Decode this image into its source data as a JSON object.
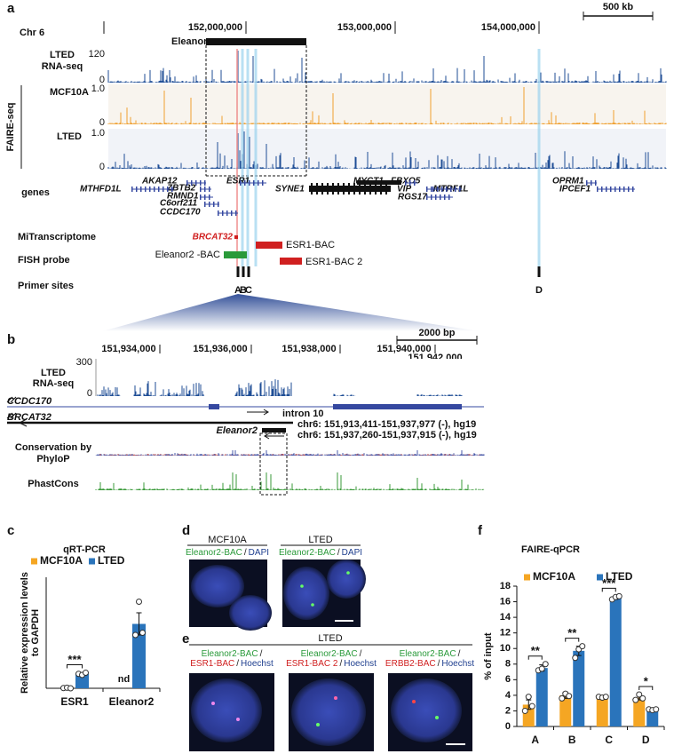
{
  "panel_a": {
    "label": "a",
    "chromosome": "Chr 6",
    "coordinates": [
      "152,000,000",
      "153,000,000",
      "154,000,000"
    ],
    "scale_bar": "500 kb",
    "region": "Eleanors",
    "rna_track": {
      "label": [
        "LTED",
        "RNA-seq"
      ],
      "axis": [
        "120",
        "0"
      ]
    },
    "faire_label": "FAIRE-seq",
    "faire_tracks": [
      {
        "label": "MCF10A",
        "axis": [
          "1.0",
          "0"
        ],
        "color": "#f0a030"
      },
      {
        "label": "LTED",
        "axis": [
          "1.0",
          "0"
        ],
        "color": "#1f4e96"
      }
    ],
    "genes_label": "genes",
    "genes": [
      "AKAP12",
      "ZBTB2",
      "RMND1",
      "C6orf211",
      "CCDC170",
      "MTHFD1L",
      "ESR1",
      "SYNE1",
      "MYCT1",
      "FBXO5",
      "VIP",
      "RGS17",
      "MTRF1L",
      "OPRM1",
      "IPCEF1"
    ],
    "mitranscriptome_label": "MiTranscriptome",
    "mitranscriptome_gene": "BRCAT32",
    "fish_label": "FISH probe",
    "fish_probes": [
      "Eleanor2 -BAC",
      "ESR1-BAC",
      "ESR1-BAC 2"
    ],
    "primer_label": "Primer sites",
    "primer_sites": [
      "A",
      "B",
      "C",
      "D"
    ]
  },
  "panel_b": {
    "label": "b",
    "coordinates": [
      "151,934,000",
      "151,936,000",
      "151,938,000",
      "151,940,000",
      "151,942,000"
    ],
    "scale_bar": "2000 bp",
    "rna_track": {
      "label": [
        "LTED",
        "RNA-seq"
      ],
      "axis": [
        "300",
        "0"
      ]
    },
    "gene_ccdc170": "CCDC170",
    "gene_brcat32": "BRCAT32",
    "intron": "intron 10",
    "brcat32_coords": "chr6: 151,913,411-151,937,977 (-), hg19",
    "eleanor2": "Eleanor2",
    "eleanor2_coords": "chr6: 151,937,260-151,937,915 (-), hg19",
    "phylop_label": [
      "Conservation by",
      "PhyloP"
    ],
    "phastcons_label": "PhastCons"
  },
  "panel_d": {
    "label": "d",
    "images": [
      {
        "title": "MCF10A",
        "stain": [
          {
            "text": "Eleanor2-BAC",
            "color": "#2a9a3a"
          },
          {
            "text": "/",
            "color": "#222222"
          },
          {
            "text": "DAPI",
            "color": "#1f3f8f"
          }
        ]
      },
      {
        "title": "LTED",
        "stain": [
          {
            "text": "Eleanor2-BAC",
            "color": "#2a9a3a"
          },
          {
            "text": "/",
            "color": "#222222"
          },
          {
            "text": "DAPI",
            "color": "#1f3f8f"
          }
        ]
      }
    ]
  },
  "panel_e": {
    "label": "e",
    "title": "LTED",
    "images": [
      {
        "lines": [
          [
            {
              "text": "Eleanor2-BAC",
              "color": "#2a9a3a"
            },
            {
              "text": "/",
              "color": "#222222"
            }
          ],
          [
            {
              "text": "ESR1-BAC",
              "color": "#d02020"
            },
            {
              "text": "/",
              "color": "#222222"
            },
            {
              "text": "Hoechst",
              "color": "#1f3f8f"
            }
          ]
        ]
      },
      {
        "lines": [
          [
            {
              "text": "Eleanor2-BAC",
              "color": "#2a9a3a"
            },
            {
              "text": "/",
              "color": "#222222"
            }
          ],
          [
            {
              "text": "ESR1-BAC 2",
              "color": "#d02020"
            },
            {
              "text": "/",
              "color": "#222222"
            },
            {
              "text": "Hoechst",
              "color": "#1f3f8f"
            }
          ]
        ]
      },
      {
        "lines": [
          [
            {
              "text": "Eleanor2-BAC",
              "color": "#2a9a3a"
            },
            {
              "text": "/",
              "color": "#222222"
            }
          ],
          [
            {
              "text": "ERBB2-BAC",
              "color": "#d02020"
            },
            {
              "text": "/",
              "color": "#222222"
            },
            {
              "text": "Hoechst",
              "color": "#1f3f8f"
            }
          ]
        ]
      }
    ]
  },
  "chart_data": [
    {
      "type": "bar",
      "panel_label": "c",
      "title": "qRT-PCR",
      "y_label": [
        "Relative expression levels",
        "to GAPDH"
      ],
      "categories": [
        "ESR1",
        "Eleanor2"
      ],
      "ylim": [
        0,
        1
      ],
      "series": [
        {
          "name": "MCF10A",
          "color": "#f5a623",
          "values": [
            0.003,
            null
          ],
          "value_labels": [
            null,
            "nd"
          ],
          "errors": [
            0.002,
            null
          ],
          "points": [
            [
              0.002,
              0.005,
              0
            ],
            null
          ]
        },
        {
          "name": "LTED",
          "color": "#2a74bb",
          "values": [
            0.13,
            0.58
          ],
          "errors": [
            0.01,
            0.1
          ],
          "points": [
            [
              0.13,
              0.12,
              0.14
            ],
            [
              0.48,
              0.78,
              0.5
            ]
          ]
        }
      ],
      "significance": [
        "***",
        null
      ]
    },
    {
      "type": "bar",
      "panel_label": "f",
      "title": "FAIRE-qPCR",
      "y_label": [
        "% of input"
      ],
      "categories": [
        "A",
        "B",
        "C",
        "D"
      ],
      "ylim": [
        0,
        18
      ],
      "yticks": [
        0,
        2,
        4,
        6,
        8,
        10,
        12,
        14,
        16,
        18
      ],
      "series": [
        {
          "name": "MCF10A",
          "color": "#f5a623",
          "values": [
            2.8,
            4.0,
            3.8,
            3.7
          ],
          "errors": [
            0.6,
            0.4,
            0.1,
            0.3
          ],
          "points": [
            [
              2.0,
              3.8,
              2.6
            ],
            [
              3.6,
              4.2,
              3.9
            ],
            [
              3.8,
              3.7,
              3.8
            ],
            [
              3.4,
              4.1,
              3.6
            ]
          ]
        },
        {
          "name": "LTED",
          "color": "#2a74bb",
          "values": [
            7.5,
            9.7,
            16.5,
            2.2
          ],
          "errors": [
            0.4,
            0.6,
            0.2,
            0.1
          ],
          "points": [
            [
              7.2,
              7.4,
              8.0
            ],
            [
              8.8,
              9.9,
              10.3
            ],
            [
              16.3,
              16.6,
              16.7
            ],
            [
              2.2,
              2.1,
              2.2
            ]
          ]
        }
      ],
      "significance": [
        "**",
        "**",
        "***",
        "*"
      ]
    }
  ]
}
